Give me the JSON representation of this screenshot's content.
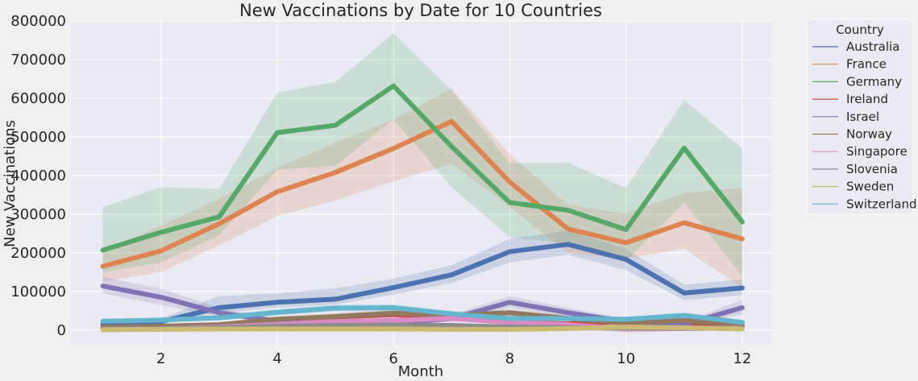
{
  "chart_data": {
    "type": "line",
    "title": "New Vaccinations by Date for 10 Countries",
    "xlabel": "Month",
    "ylabel": "New Vaccinations",
    "x": [
      1,
      2,
      3,
      4,
      5,
      6,
      7,
      8,
      9,
      10,
      11,
      12
    ],
    "xticks": [
      2,
      4,
      6,
      8,
      10,
      12
    ],
    "xlim": [
      0.45,
      12.5
    ],
    "ylim": [
      -40000,
      800000
    ],
    "yticks": [
      0,
      100000,
      200000,
      300000,
      400000,
      500000,
      600000,
      700000,
      800000
    ],
    "grid": true,
    "legend_title": "Country",
    "legend_position": "outside-right",
    "series": [
      {
        "name": "Australia",
        "color": "#4c72b0",
        "values": [
          15000,
          22000,
          58000,
          72000,
          80000,
          110000,
          143000,
          203000,
          222000,
          183000,
          96000,
          109000
        ],
        "ci_low": [
          8000,
          15000,
          45000,
          58000,
          66000,
          92000,
          122000,
          175000,
          195000,
          155000,
          78000,
          90000
        ],
        "ci_high": [
          22000,
          30000,
          88000,
          95000,
          108000,
          133000,
          168000,
          236000,
          258000,
          210000,
          118000,
          131000
        ]
      },
      {
        "name": "France",
        "color": "#dd8452",
        "values": [
          165000,
          205000,
          275000,
          358000,
          408000,
          470000,
          540000,
          383000,
          262000,
          226000,
          278000,
          236000
        ],
        "ci_low": [
          125000,
          150000,
          220000,
          295000,
          335000,
          385000,
          430000,
          318000,
          200000,
          185000,
          210000,
          110000
        ],
        "ci_high": [
          205000,
          270000,
          340000,
          420000,
          485000,
          545000,
          625000,
          455000,
          325000,
          302000,
          355000,
          368000
        ]
      },
      {
        "name": "Germany",
        "color": "#55a868",
        "values": [
          207000,
          253000,
          293000,
          511000,
          530000,
          632000,
          475000,
          330000,
          310000,
          260000,
          471000,
          280000
        ],
        "ci_low": [
          150000,
          175000,
          245000,
          415000,
          425000,
          545000,
          370000,
          240000,
          225000,
          178000,
          330000,
          140000
        ],
        "ci_high": [
          318000,
          370000,
          365000,
          615000,
          642000,
          768000,
          620000,
          432000,
          433000,
          368000,
          595000,
          470000
        ]
      },
      {
        "name": "Ireland",
        "color": "#c44e52",
        "values": [
          6000,
          8000,
          12000,
          25000,
          34000,
          40000,
          32000,
          20000,
          16000,
          22000,
          14000,
          10000
        ],
        "ci_low": [
          3000,
          5000,
          8000,
          18000,
          26000,
          32000,
          25000,
          14000,
          10000,
          15000,
          9000,
          6000
        ],
        "ci_high": [
          10000,
          12000,
          17000,
          32000,
          42000,
          48000,
          40000,
          26000,
          22000,
          29000,
          19000,
          14000
        ]
      },
      {
        "name": "Israel",
        "color": "#8172b3",
        "values": [
          114000,
          85000,
          45000,
          23000,
          15000,
          17000,
          30000,
          72000,
          45000,
          22000,
          15000,
          58000
        ],
        "ci_low": [
          95000,
          65000,
          35000,
          17000,
          10000,
          12000,
          22000,
          58000,
          33000,
          15000,
          10000,
          40000
        ],
        "ci_high": [
          138000,
          107000,
          58000,
          30000,
          22000,
          24000,
          40000,
          88000,
          58000,
          30000,
          22000,
          78000
        ]
      },
      {
        "name": "Norway",
        "color": "#937860",
        "values": [
          8000,
          10000,
          14000,
          28000,
          35000,
          44000,
          38000,
          45000,
          30000,
          18000,
          25000,
          12000
        ],
        "ci_low": [
          4000,
          6000,
          9000,
          20000,
          27000,
          35000,
          30000,
          36000,
          22000,
          12000,
          18000,
          7000
        ],
        "ci_high": [
          12000,
          15000,
          20000,
          36000,
          44000,
          53000,
          46000,
          54000,
          38000,
          25000,
          32000,
          18000
        ]
      },
      {
        "name": "Singapore",
        "color": "#da8bc3",
        "values": [
          2000,
          4000,
          8000,
          15000,
          22000,
          25000,
          30000,
          20000,
          14000,
          3000,
          4000,
          5000
        ],
        "ci_low": [
          500,
          1500,
          4000,
          10000,
          15000,
          18000,
          22000,
          14000,
          9000,
          -8000,
          -2000,
          1000
        ],
        "ci_high": [
          4000,
          7000,
          12000,
          20000,
          29000,
          32000,
          38000,
          27000,
          20000,
          12000,
          10000,
          9000
        ]
      },
      {
        "name": "Slovenia",
        "color": "#8c8c8c",
        "values": [
          3000,
          4000,
          6000,
          10000,
          12000,
          13000,
          12000,
          8000,
          6000,
          5000,
          5000,
          4000
        ],
        "ci_low": [
          1500,
          2500,
          4000,
          7000,
          9000,
          10000,
          9000,
          6000,
          4000,
          3000,
          3000,
          2500
        ],
        "ci_high": [
          4500,
          5500,
          8000,
          13000,
          15000,
          16000,
          15000,
          10000,
          8000,
          7000,
          7000,
          5500
        ]
      },
      {
        "name": "Sweden",
        "color": "#ccb974",
        "values": [
          1000,
          2000,
          3000,
          3000,
          3000,
          3000,
          2000,
          2000,
          4000,
          8000,
          6000,
          3000
        ],
        "ci_low": [
          500,
          1000,
          2000,
          2000,
          2000,
          2000,
          1000,
          1000,
          2000,
          5000,
          4000,
          1500
        ],
        "ci_high": [
          1500,
          3000,
          4000,
          4000,
          4000,
          4000,
          3000,
          3000,
          6000,
          11000,
          8000,
          4500
        ]
      },
      {
        "name": "Switzerland",
        "color": "#64b5cd",
        "values": [
          23000,
          26000,
          32000,
          46000,
          57000,
          58000,
          42000,
          30000,
          30000,
          28000,
          38000,
          20000
        ],
        "ci_low": [
          17000,
          20000,
          25000,
          38000,
          48000,
          49000,
          34000,
          23000,
          23000,
          22000,
          30000,
          14000
        ],
        "ci_high": [
          29000,
          32000,
          39000,
          54000,
          66000,
          67000,
          50000,
          37000,
          37000,
          34000,
          46000,
          26000
        ]
      }
    ]
  }
}
